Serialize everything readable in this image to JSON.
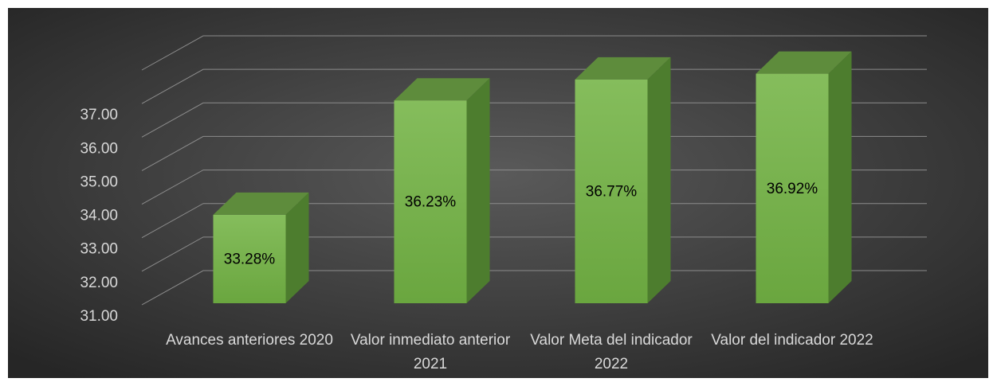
{
  "chart_data": {
    "type": "bar3d",
    "categories": [
      "Avances anteriores 2020",
      "Valor inmediato anterior 2021",
      "Valor Meta del indicador 2022",
      "Valor del indicador 2022"
    ],
    "values": [
      33.28,
      36.23,
      36.77,
      36.92
    ],
    "value_labels": [
      "33.28%",
      "36.23%",
      "36.77%",
      "36.92%"
    ],
    "color": "#70ad47",
    "ylim": [
      31,
      38
    ],
    "yticks": [
      {
        "value": 31,
        "label": "31.00"
      },
      {
        "value": 32,
        "label": "32.00"
      },
      {
        "value": 33,
        "label": "33.00"
      },
      {
        "value": 34,
        "label": "34.00"
      },
      {
        "value": 35,
        "label": "35.00"
      },
      {
        "value": 36,
        "label": "36.00"
      },
      {
        "value": 37,
        "label": "37.00"
      }
    ],
    "grid": true
  }
}
